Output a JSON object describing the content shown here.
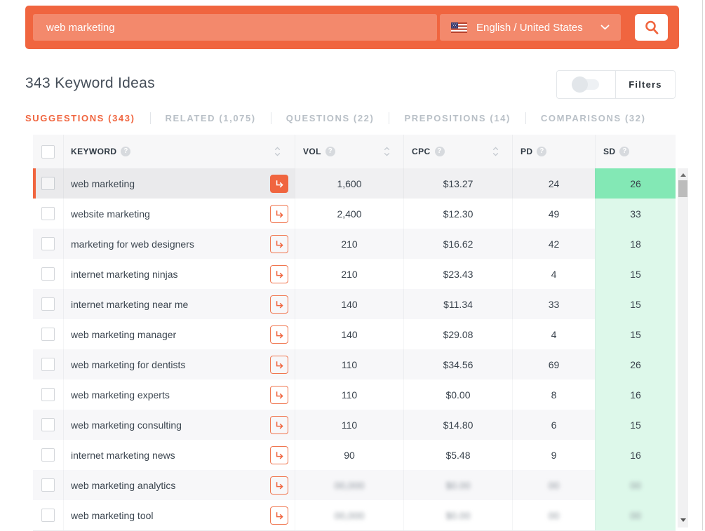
{
  "search": {
    "query": "web marketing",
    "language": "English / United States"
  },
  "results_header": {
    "title": "343 Keyword Ideas",
    "filters_label": "Filters",
    "filters_toggle_state": "off"
  },
  "tabs": [
    {
      "id": "suggestions",
      "label": "SUGGESTIONS (343)",
      "active": true
    },
    {
      "id": "related",
      "label": "RELATED (1,075)",
      "active": false
    },
    {
      "id": "questions",
      "label": "QUESTIONS (22)",
      "active": false
    },
    {
      "id": "prepositions",
      "label": "PREPOSITIONS (14)",
      "active": false
    },
    {
      "id": "comparisons",
      "label": "COMPARISONS (32)",
      "active": false
    }
  ],
  "table": {
    "columns": [
      {
        "key": "keyword",
        "label": "KEYWORD",
        "help": true,
        "sortable": true
      },
      {
        "key": "vol",
        "label": "VOL",
        "help": true,
        "sortable": true
      },
      {
        "key": "cpc",
        "label": "CPC",
        "help": true,
        "sortable": true
      },
      {
        "key": "pd",
        "label": "PD",
        "help": true,
        "sortable": false
      },
      {
        "key": "sd",
        "label": "SD",
        "help": true,
        "sortable": false
      }
    ],
    "rows": [
      {
        "keyword": "web marketing",
        "vol": "1,600",
        "cpc": "$13.27",
        "pd": "24",
        "sd": "26",
        "selected": true,
        "blurred": false
      },
      {
        "keyword": "website marketing",
        "vol": "2,400",
        "cpc": "$12.30",
        "pd": "49",
        "sd": "33",
        "selected": false,
        "blurred": false
      },
      {
        "keyword": "marketing for web designers",
        "vol": "210",
        "cpc": "$16.62",
        "pd": "42",
        "sd": "18",
        "selected": false,
        "blurred": false
      },
      {
        "keyword": "internet marketing ninjas",
        "vol": "210",
        "cpc": "$23.43",
        "pd": "4",
        "sd": "15",
        "selected": false,
        "blurred": false
      },
      {
        "keyword": "internet marketing near me",
        "vol": "140",
        "cpc": "$11.34",
        "pd": "33",
        "sd": "15",
        "selected": false,
        "blurred": false
      },
      {
        "keyword": "web marketing manager",
        "vol": "140",
        "cpc": "$29.08",
        "pd": "4",
        "sd": "15",
        "selected": false,
        "blurred": false
      },
      {
        "keyword": "web marketing for dentists",
        "vol": "110",
        "cpc": "$34.56",
        "pd": "69",
        "sd": "26",
        "selected": false,
        "blurred": false
      },
      {
        "keyword": "web marketing experts",
        "vol": "110",
        "cpc": "$0.00",
        "pd": "8",
        "sd": "16",
        "selected": false,
        "blurred": false
      },
      {
        "keyword": "web marketing consulting",
        "vol": "110",
        "cpc": "$14.80",
        "pd": "6",
        "sd": "15",
        "selected": false,
        "blurred": false
      },
      {
        "keyword": "internet marketing news",
        "vol": "90",
        "cpc": "$5.48",
        "pd": "9",
        "sd": "16",
        "selected": false,
        "blurred": false
      },
      {
        "keyword": "web marketing analytics",
        "vol": "00,000",
        "cpc": "$0.00",
        "pd": "00",
        "sd": "00",
        "selected": false,
        "blurred": true
      },
      {
        "keyword": "web marketing tool",
        "vol": "00,000",
        "cpc": "$0.00",
        "pd": "00",
        "sd": "00",
        "selected": false,
        "blurred": true
      }
    ]
  },
  "colors": {
    "accent_orange": "#f0653f",
    "sd_highlight_green": "#83e8b5",
    "sd_cell_mint": "#ddf8ea",
    "inactive_tab_gray": "#b9c0c7",
    "header_bg": "#f7f7f8"
  }
}
